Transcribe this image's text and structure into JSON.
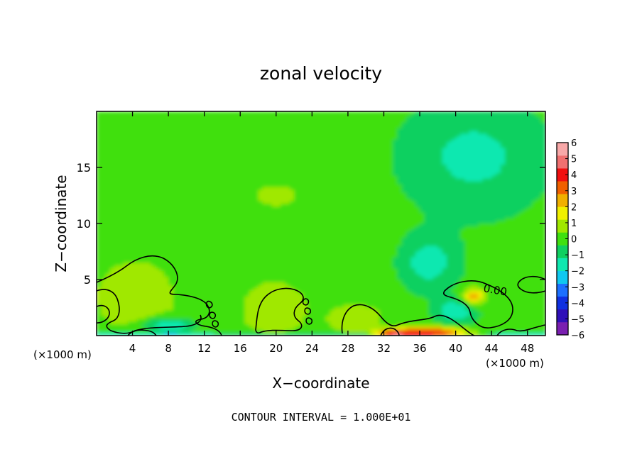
{
  "chart_data": {
    "type": "heatmap",
    "title": "zonal velocity",
    "xlabel": "X−coordinate",
    "ylabel": "Z−coordinate",
    "x_unit_left": "(×1000 m)",
    "x_unit_right": "(×1000 m)",
    "xlim": [
      0,
      50
    ],
    "ylim": [
      0,
      20
    ],
    "x_ticks": [
      4,
      8,
      12,
      16,
      20,
      24,
      28,
      32,
      36,
      40,
      44,
      48
    ],
    "x_tick_labels": [
      "4",
      "8",
      "12",
      "16",
      "20",
      "24",
      "28",
      "32",
      "36",
      "40",
      "44",
      "48"
    ],
    "y_ticks": [
      5,
      10,
      15
    ],
    "y_tick_labels": [
      "5",
      "10",
      "15"
    ],
    "colorbar": {
      "min": -6,
      "max": 6,
      "levels": [
        -6,
        -5,
        -4,
        -3,
        -2,
        -1,
        0,
        1,
        2,
        3,
        4,
        5,
        6
      ],
      "labels": [
        "−6",
        "−5",
        "−4",
        "−3",
        "−2",
        "−1",
        "0",
        "1",
        "2",
        "3",
        "4",
        "5",
        "6"
      ],
      "colors": [
        "#7a1fb0",
        "#3010b8",
        "#1030e0",
        "#1c70ff",
        "#10c8f0",
        "#10e8b0",
        "#10d060",
        "#40e010",
        "#a0e800",
        "#f0f000",
        "#f0b000",
        "#f06000",
        "#f01010",
        "#f07070",
        "#f8a8a8"
      ]
    },
    "contour_label": "0.00",
    "footer": "CONTOUR INTERVAL = 1.000E+01",
    "field": {
      "background": 0.0,
      "features": [
        {
          "kind": "blob",
          "x": 42,
          "z": 16,
          "rx": 8,
          "rz": 5,
          "value": -1.4
        },
        {
          "kind": "blob",
          "x": 37,
          "z": 6.5,
          "rx": 3,
          "rz": 2.3,
          "value": -1.6
        },
        {
          "kind": "blob",
          "x": 20,
          "z": 12.5,
          "rx": 3,
          "rz": 1.2,
          "value": 0.6
        },
        {
          "kind": "blob",
          "x": 42,
          "z": 3.5,
          "rx": 1.2,
          "rz": 0.8,
          "value": 2.6
        },
        {
          "kind": "blob",
          "x": 4,
          "z": 3.5,
          "rx": 4,
          "rz": 3,
          "value": 1.0
        },
        {
          "kind": "blob",
          "x": 20,
          "z": 2.5,
          "rx": 3,
          "rz": 2,
          "value": 1.0
        },
        {
          "kind": "blob",
          "x": 29,
          "z": 1.5,
          "rx": 3,
          "rz": 1.3,
          "value": 1.1
        },
        {
          "kind": "blob",
          "x": 8,
          "z": 0.9,
          "rx": 3,
          "rz": 0.7,
          "value": -2.2
        },
        {
          "kind": "blob",
          "x": 40,
          "z": 2.2,
          "rx": 2,
          "rz": 1,
          "value": -1.8
        },
        {
          "kind": "blob",
          "x": 37,
          "z": 0.3,
          "rx": 4,
          "rz": 0.45,
          "value": 4.5
        },
        {
          "kind": "blob",
          "x": 33,
          "z": 0.2,
          "rx": 2,
          "rz": 0.3,
          "value": 3.2
        },
        {
          "kind": "strip",
          "x0": 0,
          "x1": 12,
          "z": 0.15,
          "value": -3.4
        },
        {
          "kind": "strip",
          "x0": 13,
          "x1": 30,
          "z": 0.2,
          "value": -1.7
        },
        {
          "kind": "strip",
          "x0": 44,
          "x1": 50,
          "z": 0.2,
          "value": -1.6
        }
      ]
    }
  }
}
